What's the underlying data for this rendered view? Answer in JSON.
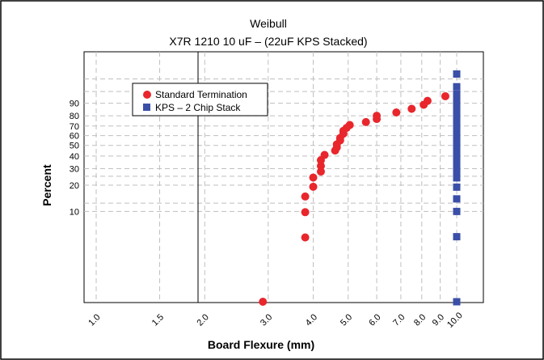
{
  "chart_data": {
    "type": "scatter",
    "title": "Weibull",
    "subtitle": "X7R 1210 10 uF – (22uF KPS Stacked)",
    "marker_label": "2",
    "xlabel": "Board Flexure (mm)",
    "ylabel": "Percent",
    "x_scale": "log",
    "y_scale": "weibull",
    "xlim": [
      1.0,
      10.0
    ],
    "x_ticks": [
      "1.0",
      "1.5",
      "2.0",
      "3.0",
      "4.0",
      "5.0",
      "6.0",
      "7.0",
      "8.0",
      "9.0",
      "10.0"
    ],
    "y_ticks": [
      "10",
      "20",
      "30",
      "40",
      "50",
      "60",
      "70",
      "80",
      "90"
    ],
    "legend_position": "top-left",
    "grid": true,
    "series": [
      {
        "name": "Standard Termination",
        "color": "#e8262c",
        "marker": "circle",
        "points": [
          [
            2.9,
            0.8
          ],
          [
            3.8,
            4.9
          ],
          [
            3.8,
            9.8
          ],
          [
            3.8,
            14.9
          ],
          [
            4.0,
            19.2
          ],
          [
            4.0,
            24.2
          ],
          [
            4.2,
            28.0
          ],
          [
            4.2,
            32.0
          ],
          [
            4.2,
            36.5
          ],
          [
            4.3,
            41.0
          ],
          [
            4.6,
            45.0
          ],
          [
            4.65,
            48.0
          ],
          [
            4.65,
            51.0
          ],
          [
            4.75,
            55.0
          ],
          [
            4.75,
            57.5
          ],
          [
            4.85,
            62.0
          ],
          [
            4.85,
            65.0
          ],
          [
            4.95,
            68.0
          ],
          [
            5.05,
            71.0
          ],
          [
            5.6,
            74.0
          ],
          [
            6.0,
            77.0
          ],
          [
            6.0,
            80.0
          ],
          [
            6.8,
            83.0
          ],
          [
            7.5,
            86.0
          ],
          [
            8.1,
            89.0
          ],
          [
            8.3,
            91.5
          ],
          [
            9.3,
            94.0
          ]
        ]
      },
      {
        "name": "KPS – 2 Chip Stack",
        "color": "#3a4fa8",
        "marker": "square",
        "points": [
          [
            10.0,
            0.8
          ],
          [
            10.0,
            5.0
          ],
          [
            10.0,
            10.0
          ],
          [
            10.0,
            14.0
          ],
          [
            10.0,
            19.0
          ],
          [
            10.0,
            24.0
          ],
          [
            10.0,
            28.0
          ],
          [
            10.0,
            32.0
          ],
          [
            10.0,
            35.0
          ],
          [
            10.0,
            38.0
          ],
          [
            10.0,
            41.0
          ],
          [
            10.0,
            44.0
          ],
          [
            10.0,
            47.0
          ],
          [
            10.0,
            50.0
          ],
          [
            10.0,
            53.0
          ],
          [
            10.0,
            56.0
          ],
          [
            10.0,
            59.0
          ],
          [
            10.0,
            62.0
          ],
          [
            10.0,
            65.0
          ],
          [
            10.0,
            68.0
          ],
          [
            10.0,
            71.0
          ],
          [
            10.0,
            74.0
          ],
          [
            10.0,
            77.0
          ],
          [
            10.0,
            80.0
          ],
          [
            10.0,
            83.0
          ],
          [
            10.0,
            86.0
          ],
          [
            10.0,
            89.0
          ],
          [
            10.0,
            92.0
          ],
          [
            10.0,
            95.0
          ],
          [
            10.0,
            97.5
          ],
          [
            10.0,
            99.5
          ]
        ]
      }
    ]
  }
}
